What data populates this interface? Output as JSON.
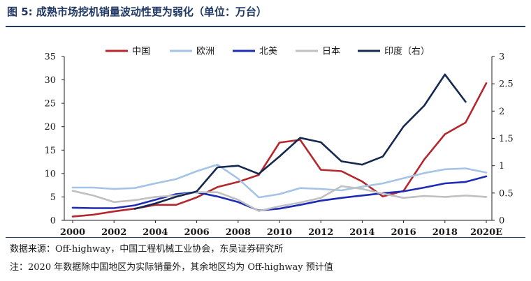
{
  "header": {
    "title": "图 5: 成熟市场挖机销量波动性更为弱化（单位：万台）"
  },
  "footer": {
    "source": "数据来源：Off-highway，中国工程机械工业协会，东吴证券研究所",
    "note": "注：2020 年数据除中国地区为实际销量外，其余地区均为 Off-highway 预计值"
  },
  "chart_data": {
    "type": "line",
    "categories": [
      "2000",
      "2001",
      "2002",
      "2003",
      "2004",
      "2005",
      "2006",
      "2007",
      "2008",
      "2009",
      "2010",
      "2011",
      "2012",
      "2013",
      "2014",
      "2015",
      "2016",
      "2017",
      "2018",
      "2019",
      "2020E"
    ],
    "x_tick_labels": [
      "2000",
      "2002",
      "2004",
      "2006",
      "2008",
      "2010",
      "2012",
      "2014",
      "2016",
      "2018",
      "2020E"
    ],
    "y_ticks_left": [
      0,
      5,
      10,
      15,
      20,
      25,
      30,
      35
    ],
    "y_ticks_right": [
      0,
      0.5,
      1,
      1.5,
      2,
      2.5,
      3
    ],
    "ylim_left": [
      0,
      35
    ],
    "ylim_right": [
      0,
      3
    ],
    "legend_position": "top",
    "grid": false,
    "series": [
      {
        "name": "中国",
        "axis": "left",
        "color": "#b5272d",
        "values": [
          0.8,
          1.2,
          1.9,
          2.5,
          3.3,
          3.3,
          4.9,
          7.1,
          8.2,
          9.7,
          16.6,
          17.2,
          10.8,
          10.5,
          8.3,
          5.1,
          6.3,
          13.0,
          18.4,
          20.9,
          29.3
        ]
      },
      {
        "name": "欧洲",
        "axis": "left",
        "color": "#a4c3e6",
        "values": [
          7.0,
          7.0,
          6.7,
          6.9,
          7.9,
          8.8,
          10.5,
          11.9,
          8.9,
          4.9,
          5.6,
          6.9,
          6.7,
          6.4,
          7.2,
          7.9,
          9.0,
          10.1,
          10.9,
          11.1,
          10.2
        ]
      },
      {
        "name": "北美",
        "axis": "left",
        "color": "#1c2cb4",
        "values": [
          2.7,
          2.6,
          2.6,
          3.2,
          4.4,
          5.6,
          6.0,
          5.1,
          3.9,
          2.1,
          2.5,
          3.3,
          4.2,
          4.8,
          5.3,
          5.8,
          6.2,
          7.0,
          7.9,
          8.2,
          9.4
        ]
      },
      {
        "name": "日本",
        "axis": "left",
        "color": "#c0c0c0",
        "values": [
          6.3,
          5.3,
          3.9,
          4.3,
          5.0,
          5.3,
          6.0,
          6.0,
          4.4,
          2.0,
          3.0,
          3.8,
          4.8,
          7.3,
          6.7,
          5.7,
          4.8,
          5.2,
          5.0,
          5.3,
          5.0
        ]
      },
      {
        "name": "印度（右）",
        "axis": "right",
        "color": "#142850",
        "values": [
          null,
          null,
          null,
          0.21,
          0.31,
          0.43,
          0.53,
          0.97,
          1.0,
          0.85,
          1.17,
          1.51,
          1.43,
          1.08,
          1.02,
          1.17,
          1.72,
          2.1,
          2.67,
          2.17,
          null
        ]
      }
    ]
  }
}
